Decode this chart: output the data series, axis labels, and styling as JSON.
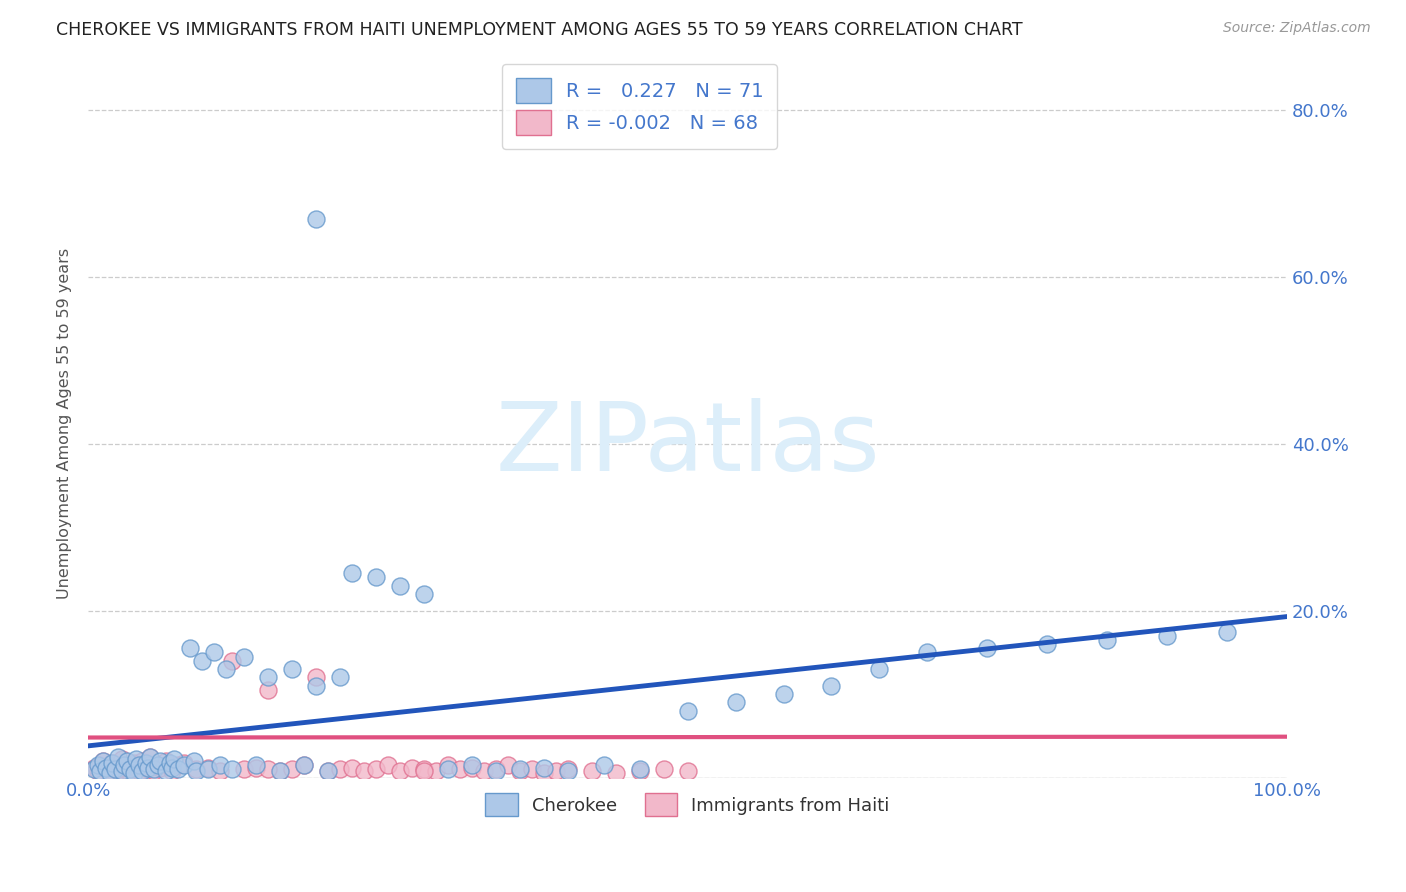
{
  "title": "CHEROKEE VS IMMIGRANTS FROM HAITI UNEMPLOYMENT AMONG AGES 55 TO 59 YEARS CORRELATION CHART",
  "source": "Source: ZipAtlas.com",
  "ylabel": "Unemployment Among Ages 55 to 59 years",
  "xlim": [
    0,
    1.0
  ],
  "ylim": [
    0,
    0.85
  ],
  "cherokee_R": 0.227,
  "cherokee_N": 71,
  "haiti_R": -0.002,
  "haiti_N": 68,
  "cherokee_color": "#adc8e8",
  "cherokee_edge_color": "#6699cc",
  "haiti_color": "#f2b8ca",
  "haiti_edge_color": "#e07090",
  "trend_cherokee_color": "#2255bb",
  "trend_haiti_color": "#e05080",
  "watermark_color": "#dceefa",
  "background_color": "#ffffff",
  "tick_color": "#4477cc",
  "ylabel_color": "#555555",
  "title_color": "#222222",
  "source_color": "#999999",
  "grid_color": "#cccccc",
  "cherokee_x": [
    0.005,
    0.008,
    0.01,
    0.012,
    0.015,
    0.018,
    0.02,
    0.022,
    0.025,
    0.028,
    0.03,
    0.032,
    0.035,
    0.038,
    0.04,
    0.042,
    0.045,
    0.048,
    0.05,
    0.052,
    0.055,
    0.058,
    0.06,
    0.065,
    0.068,
    0.07,
    0.072,
    0.075,
    0.08,
    0.085,
    0.088,
    0.09,
    0.095,
    0.1,
    0.105,
    0.11,
    0.115,
    0.12,
    0.13,
    0.14,
    0.15,
    0.16,
    0.17,
    0.18,
    0.19,
    0.2,
    0.21,
    0.22,
    0.24,
    0.26,
    0.28,
    0.3,
    0.32,
    0.34,
    0.36,
    0.38,
    0.4,
    0.43,
    0.46,
    0.5,
    0.54,
    0.58,
    0.62,
    0.66,
    0.7,
    0.75,
    0.8,
    0.85,
    0.9,
    0.95,
    0.19
  ],
  "cherokee_y": [
    0.01,
    0.015,
    0.008,
    0.02,
    0.012,
    0.005,
    0.018,
    0.01,
    0.025,
    0.008,
    0.015,
    0.02,
    0.01,
    0.005,
    0.022,
    0.015,
    0.008,
    0.018,
    0.012,
    0.025,
    0.01,
    0.015,
    0.02,
    0.008,
    0.018,
    0.012,
    0.022,
    0.01,
    0.015,
    0.155,
    0.02,
    0.008,
    0.14,
    0.01,
    0.15,
    0.015,
    0.13,
    0.01,
    0.145,
    0.015,
    0.12,
    0.008,
    0.13,
    0.015,
    0.11,
    0.008,
    0.12,
    0.245,
    0.24,
    0.23,
    0.22,
    0.01,
    0.015,
    0.008,
    0.01,
    0.012,
    0.008,
    0.015,
    0.01,
    0.08,
    0.09,
    0.1,
    0.11,
    0.13,
    0.15,
    0.155,
    0.16,
    0.165,
    0.17,
    0.175,
    0.67
  ],
  "haiti_x": [
    0.005,
    0.008,
    0.01,
    0.012,
    0.015,
    0.018,
    0.02,
    0.022,
    0.025,
    0.028,
    0.03,
    0.032,
    0.035,
    0.038,
    0.04,
    0.042,
    0.045,
    0.048,
    0.05,
    0.052,
    0.055,
    0.058,
    0.06,
    0.065,
    0.07,
    0.075,
    0.08,
    0.09,
    0.1,
    0.11,
    0.12,
    0.13,
    0.14,
    0.15,
    0.16,
    0.17,
    0.18,
    0.19,
    0.2,
    0.21,
    0.22,
    0.23,
    0.24,
    0.25,
    0.26,
    0.27,
    0.28,
    0.29,
    0.3,
    0.31,
    0.32,
    0.33,
    0.34,
    0.35,
    0.36,
    0.37,
    0.38,
    0.39,
    0.4,
    0.42,
    0.44,
    0.46,
    0.48,
    0.5,
    0.15,
    0.28,
    0.05,
    0.025
  ],
  "haiti_y": [
    0.012,
    0.008,
    0.015,
    0.02,
    0.01,
    0.005,
    0.018,
    0.012,
    0.008,
    0.022,
    0.015,
    0.01,
    0.005,
    0.018,
    0.012,
    0.008,
    0.02,
    0.015,
    0.01,
    0.025,
    0.008,
    0.015,
    0.012,
    0.02,
    0.008,
    0.015,
    0.018,
    0.01,
    0.012,
    0.008,
    0.14,
    0.01,
    0.012,
    0.105,
    0.008,
    0.01,
    0.015,
    0.12,
    0.008,
    0.01,
    0.012,
    0.008,
    0.01,
    0.015,
    0.008,
    0.012,
    0.01,
    0.008,
    0.015,
    0.01,
    0.012,
    0.008,
    0.01,
    0.015,
    0.008,
    0.01,
    0.005,
    0.008,
    0.01,
    0.008,
    0.005,
    0.008,
    0.01,
    0.008,
    0.01,
    0.008,
    0.015,
    0.01
  ]
}
